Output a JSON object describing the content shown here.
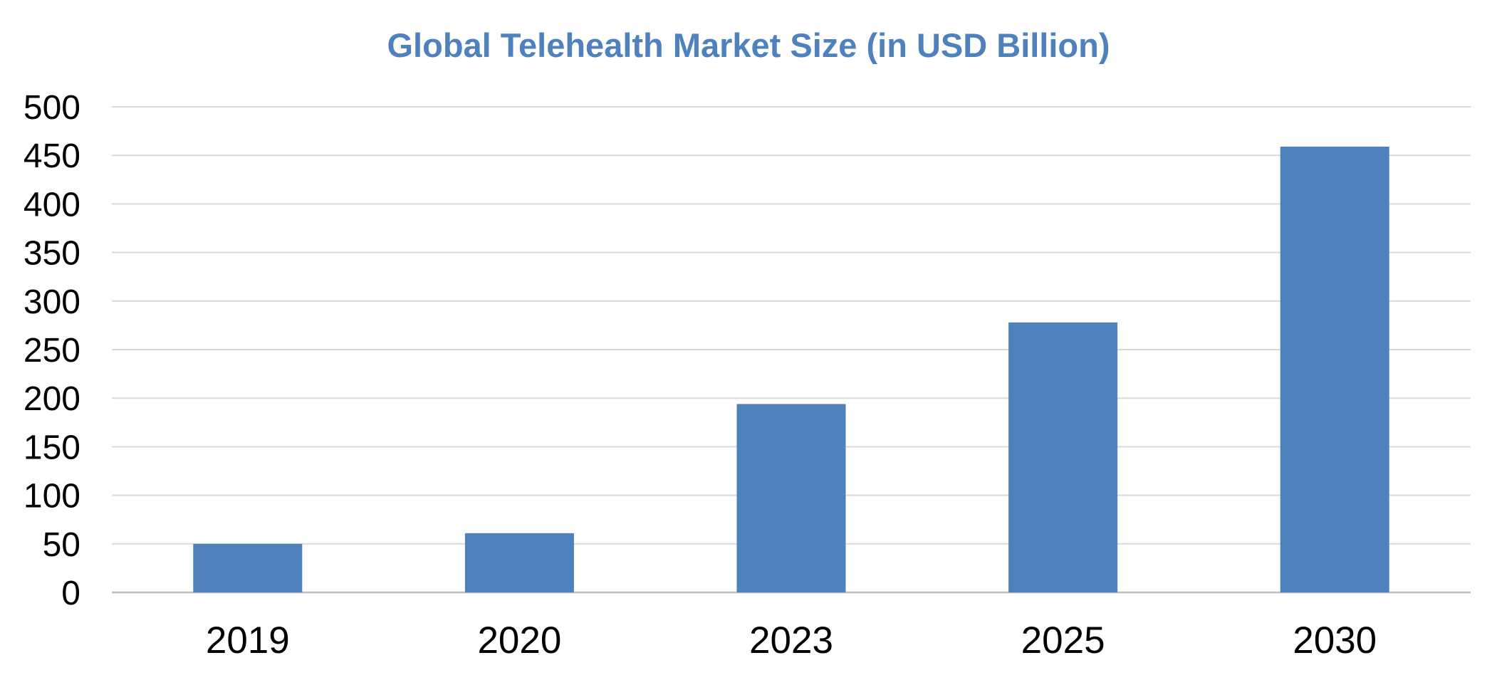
{
  "chart_data": {
    "type": "bar",
    "title": "Global Telehealth Market Size (in USD Billion)",
    "xlabel": "",
    "ylabel": "",
    "categories": [
      "2019",
      "2020",
      "2023",
      "2025",
      "2030"
    ],
    "values": [
      50,
      61,
      194,
      278,
      459
    ],
    "ylim": [
      0,
      500
    ],
    "yticks": [
      "0",
      "50",
      "100",
      "150",
      "200",
      "250",
      "300",
      "350",
      "400",
      "450",
      "500"
    ],
    "grid": true,
    "legend": "none",
    "colors": {
      "bar": "#4f81bd",
      "title": "#4f81bd",
      "grid": "#d9d9d9",
      "axis": "#bfbfbf"
    }
  }
}
